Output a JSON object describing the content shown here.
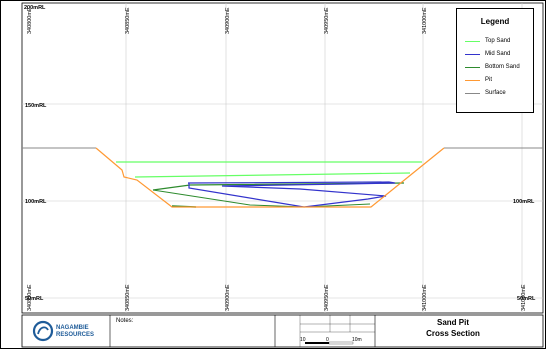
{
  "grid": {
    "easting_labels": [
      "340800mE",
      "340850mE",
      "340900mE",
      "340950mE",
      "341000mE",
      "341050mE"
    ],
    "rl_left": [
      "200mRL",
      "150mRL",
      "100mRL",
      "50mRL"
    ],
    "rl_right": [
      "100mRL",
      "50mRL"
    ]
  },
  "legend": {
    "title": "Legend",
    "items": [
      {
        "label": "Top Sand",
        "color": "#66ff66"
      },
      {
        "label": "Mid Sand",
        "color": "#3333cc"
      },
      {
        "label": "Bottom Sand",
        "color": "#2e8b2e"
      },
      {
        "label": "Pit",
        "color": "#ff9933"
      },
      {
        "label": "Surface",
        "color": "#888888"
      }
    ]
  },
  "title_block": {
    "company_line1": "NAGAMBIE",
    "company_line2": "RESOURCES",
    "notes_label": "Notes:",
    "title_line1": "Sand Pit",
    "title_line2": "Cross Section",
    "scale_labels": [
      "10",
      "0",
      "10m"
    ]
  },
  "colors": {
    "top_sand": "#66ff66",
    "mid_sand": "#3333cc",
    "bottom_sand": "#2e8b2e",
    "pit": "#ff9933",
    "surface": "#888888",
    "logo": "#1f5c99"
  }
}
